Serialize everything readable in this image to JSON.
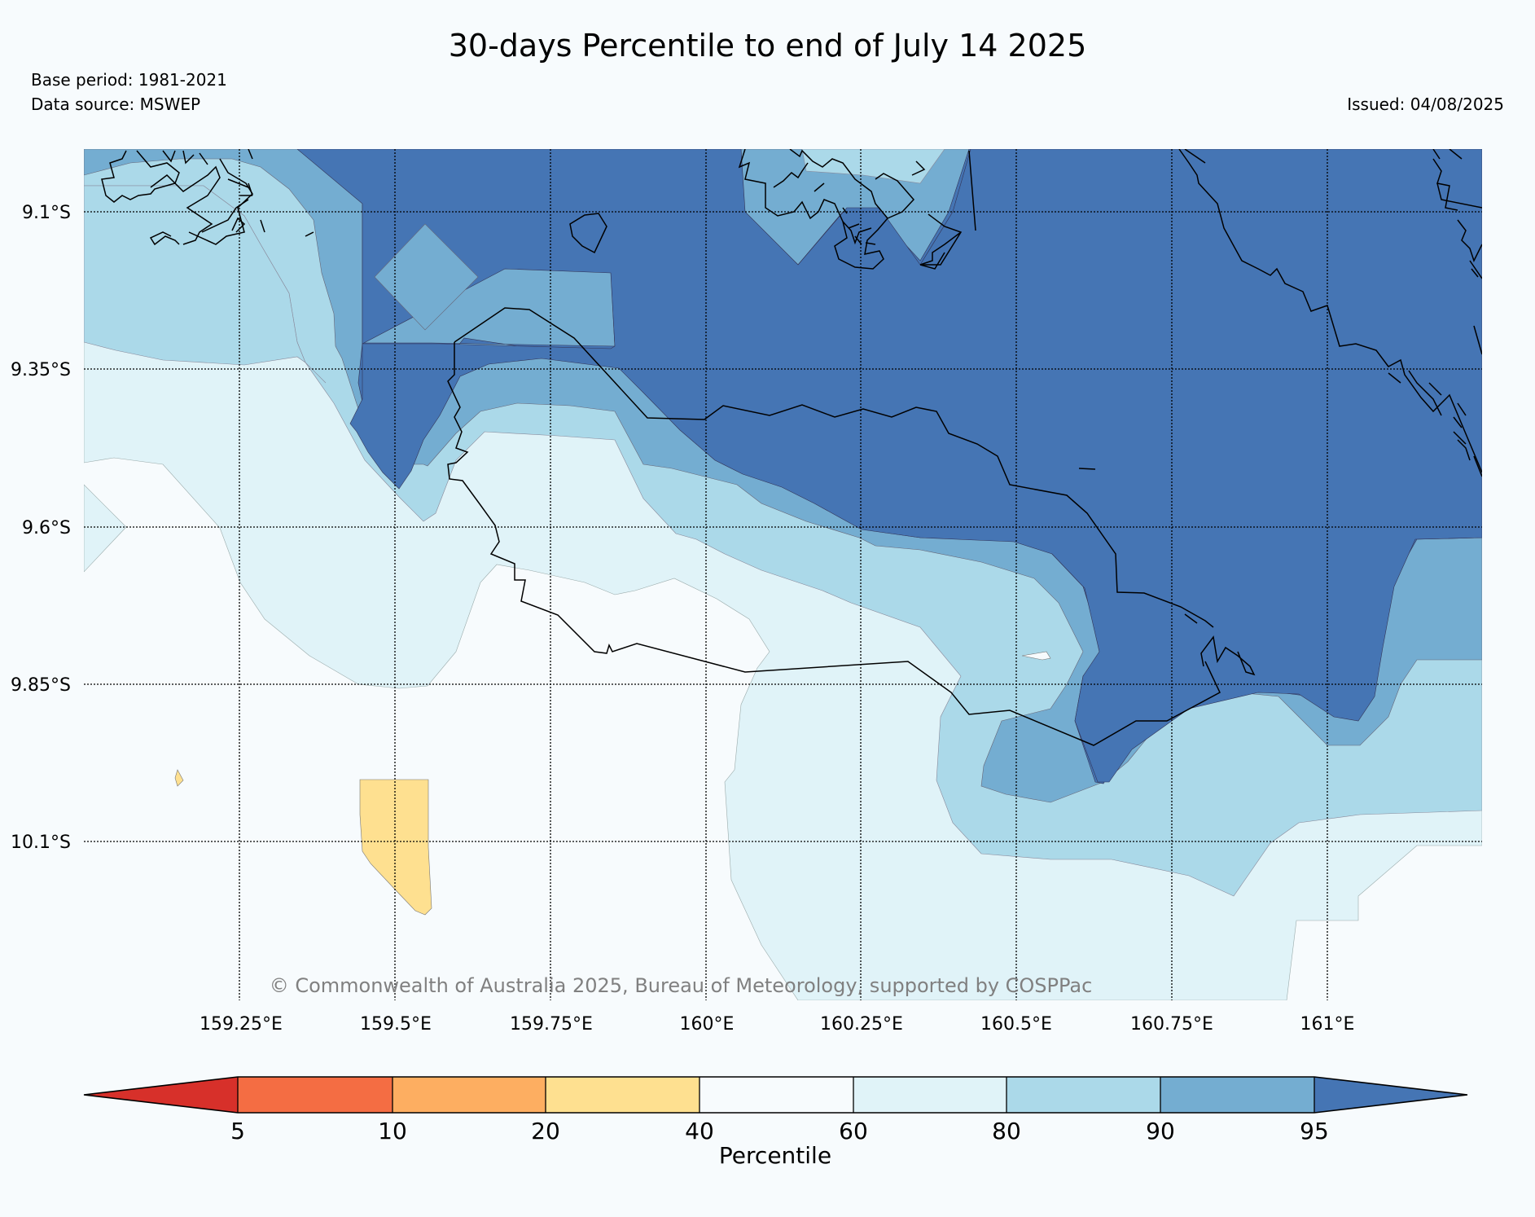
{
  "header": {
    "title": "30-days Percentile to end of July 14 2025",
    "base_period": "Base period: 1981-2021",
    "data_source": "Data source: MSWEP",
    "issued": "Issued: 04/08/2025"
  },
  "map": {
    "lat_labels": [
      "9.1°S",
      "9.35°S",
      "9.6°S",
      "9.85°S",
      "10.1°S"
    ],
    "lon_labels": [
      "159.25°E",
      "159.5°E",
      "159.75°E",
      "160°E",
      "160.25°E",
      "160.5°E",
      "160.75°E",
      "161°E"
    ],
    "lat_range": [
      -10.3,
      -9.0
    ],
    "lon_range": [
      159.0,
      161.25
    ],
    "copyright": "© Commonwealth of Australia 2025, Bureau of Meteorology, supported by COSPPac"
  },
  "colorbar": {
    "label": "Percentile",
    "ticks": [
      "5",
      "10",
      "20",
      "40",
      "60",
      "80",
      "90",
      "95"
    ],
    "colors": {
      "below_5": "#d7302a",
      "5_10": "#f46d43",
      "10_20": "#fdae61",
      "20_40": "#fee090",
      "40_60": "#f7fbfd",
      "60_80": "#e0f3f8",
      "80_90": "#abd9e9",
      "90_95": "#74add1",
      "above_95": "#4575b4"
    }
  }
}
